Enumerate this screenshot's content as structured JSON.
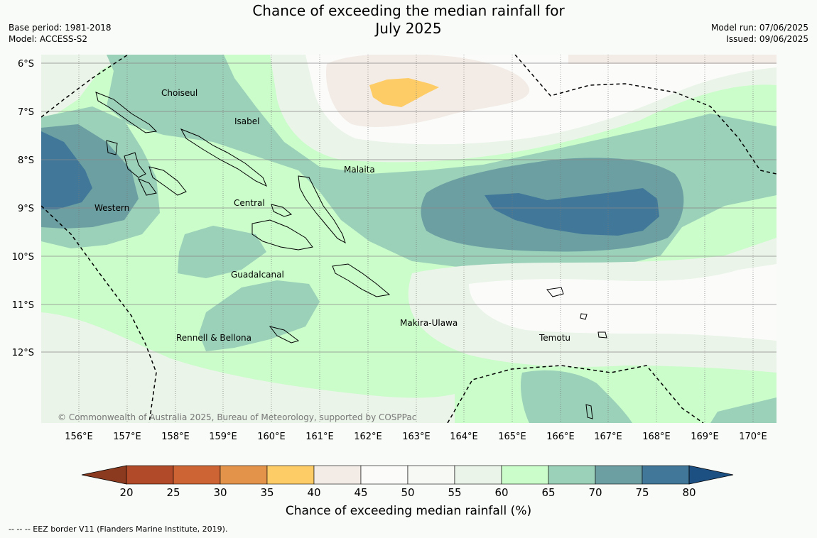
{
  "title": {
    "line1": "Chance of exceeding the median rainfall for",
    "line2": "July 2025"
  },
  "meta_left": {
    "base_period": "Base period: 1981-2018",
    "model": "Model: ACCESS-S2"
  },
  "meta_right": {
    "model_run": "Model run: 07/06/2025",
    "issued": "Issued: 09/06/2025"
  },
  "map": {
    "lat_labels": [
      "6°S",
      "7°S",
      "8°S",
      "9°S",
      "10°S",
      "11°S",
      "12°S"
    ],
    "lon_labels": [
      "156°E",
      "157°E",
      "158°E",
      "159°E",
      "160°E",
      "161°E",
      "162°E",
      "163°E",
      "164°E",
      "165°E",
      "166°E",
      "167°E",
      "168°E",
      "169°E",
      "170°E"
    ],
    "place_labels": [
      "Choiseul",
      "Isabel",
      "Malaita",
      "Western",
      "Central",
      "Guadalcanal",
      "Rennell & Bellona",
      "Makira-Ulawa",
      "Temotu"
    ],
    "copyright": "© Commonwealth of Australia 2025, Bureau of Meteorology, supported by COSPPac"
  },
  "colorbar": {
    "title": "Chance of exceeding median rainfall (%)",
    "ticks": [
      "20",
      "25",
      "30",
      "35",
      "40",
      "45",
      "50",
      "55",
      "60",
      "65",
      "70",
      "75",
      "80"
    ],
    "colors": [
      "#8c3a1f",
      "#b04a28",
      "#cc6433",
      "#e3934a",
      "#fecc66",
      "#f3ece6",
      "#fbfcfa",
      "#f7f9f5",
      "#eaf4e8",
      "#cafdca",
      "#9bd0b9",
      "#6b9fa2",
      "#41789a",
      "#1c4f82"
    ]
  },
  "footnote": "--  --  -- EEZ border V11 (Flanders Marine Institute, 2019)."
}
